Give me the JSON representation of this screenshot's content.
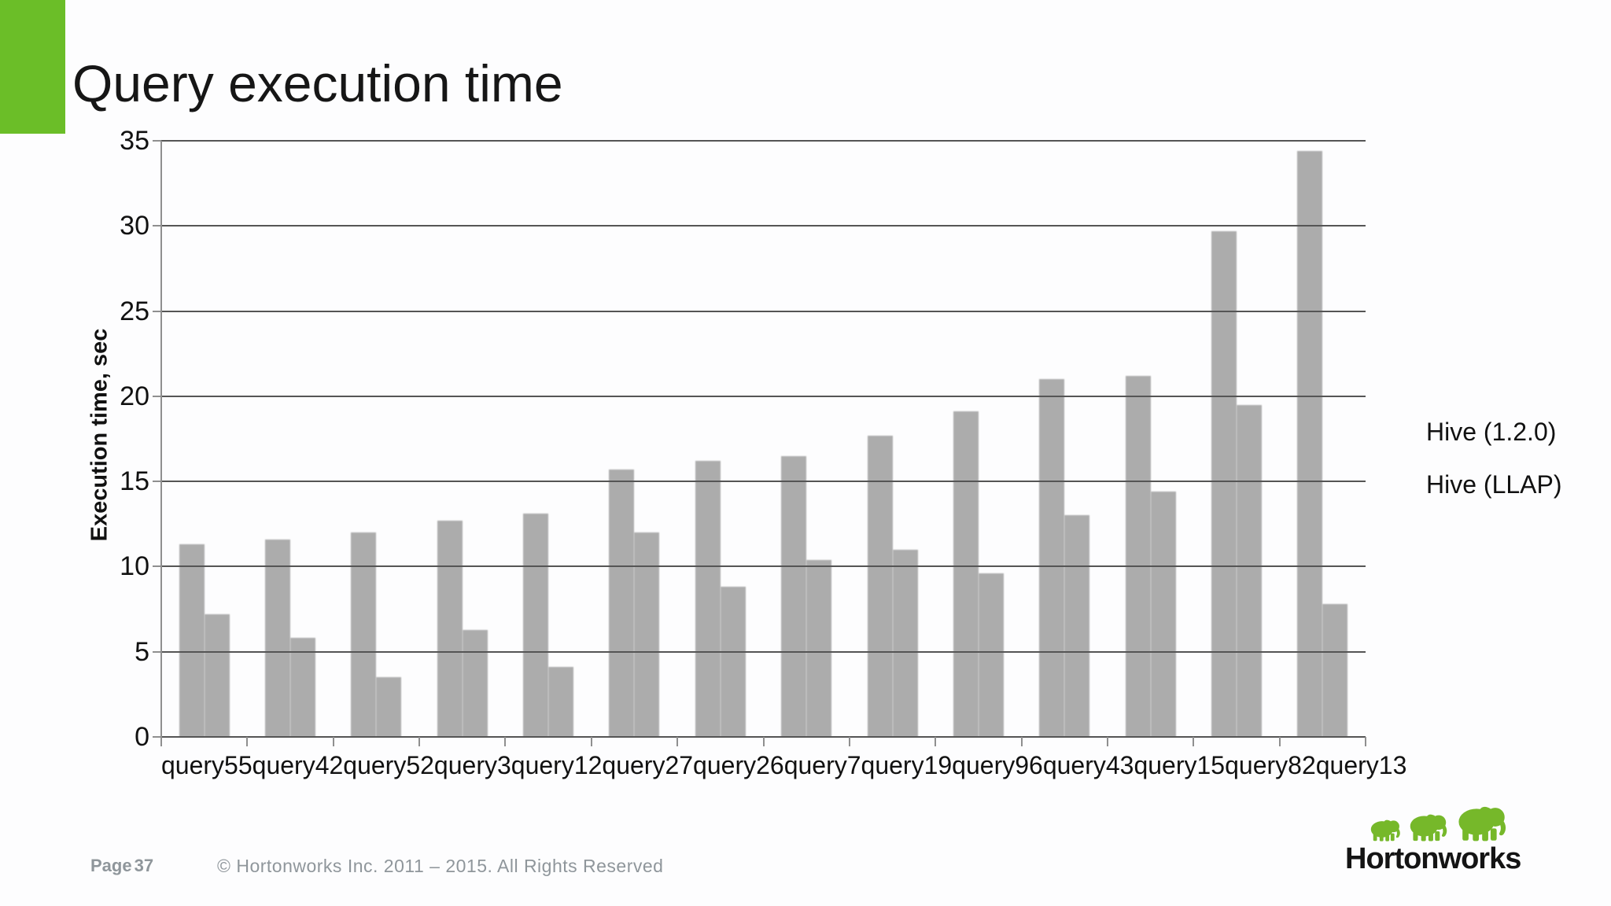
{
  "slide": {
    "accent_color": "#6bbe28",
    "background_color": "#fdfdfe"
  },
  "chart_data": {
    "type": "bar",
    "title": "Query execution time",
    "ylabel": "Execution time, sec",
    "xlabel": "",
    "ylim": [
      0,
      35
    ],
    "yticks": [
      0,
      5,
      10,
      15,
      20,
      25,
      30,
      35
    ],
    "grid": true,
    "legend_position": "right-outside",
    "bar_color": "#acacac",
    "categories": [
      "query55",
      "query42",
      "query52",
      "query3",
      "query12",
      "query27",
      "query26",
      "query7",
      "query19",
      "query96",
      "query43",
      "query15",
      "query82",
      "query13"
    ],
    "series": [
      {
        "name": "Hive (1.2.0)",
        "values": [
          11.3,
          11.6,
          12.0,
          12.7,
          13.1,
          15.7,
          16.2,
          16.5,
          17.7,
          19.1,
          21.0,
          21.2,
          29.7,
          34.4
        ]
      },
      {
        "name": "Hive (LLAP)",
        "values": [
          7.2,
          5.8,
          3.5,
          6.3,
          4.1,
          12.0,
          8.8,
          10.4,
          11.0,
          9.6,
          13.0,
          14.4,
          19.5,
          7.8
        ]
      }
    ]
  },
  "footer": {
    "page_word": "Page",
    "page_number": "37",
    "copyright": "© Hortonworks Inc. 2011 – 2015. All Rights Reserved"
  },
  "logo": {
    "text": "Hortonworks",
    "green": "#76b82a"
  }
}
